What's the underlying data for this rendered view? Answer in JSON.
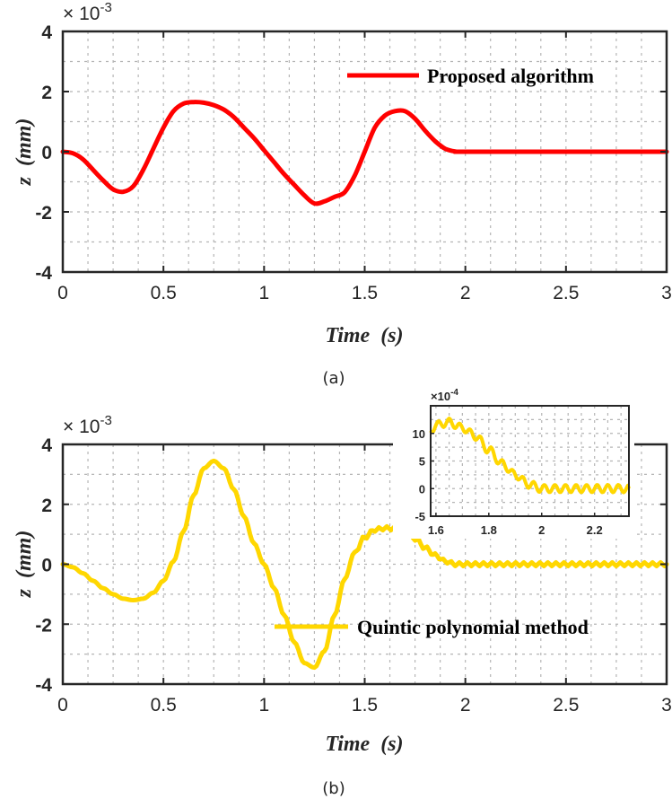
{
  "chart_data": [
    {
      "type": "line",
      "panel": "(a)",
      "xlabel": "Time  (s)",
      "ylabel": "z  (mm)",
      "exponent": "× 10",
      "exponent_power": "-3",
      "xlim": [
        0,
        3
      ],
      "ylim": [
        -4,
        4
      ],
      "xticks": [
        "0",
        "0.5",
        "1",
        "1.5",
        "2",
        "2.5",
        "3"
      ],
      "yticks": [
        "4",
        "2",
        "0",
        "-2",
        "-4"
      ],
      "grid": true,
      "legend_position": "top-right",
      "color": "#ff0000",
      "series": [
        {
          "name": "Proposed algorithm",
          "x": [
            0,
            0.05,
            0.1,
            0.15,
            0.2,
            0.25,
            0.3,
            0.35,
            0.4,
            0.45,
            0.5,
            0.55,
            0.6,
            0.65,
            0.7,
            0.75,
            0.8,
            0.85,
            0.9,
            0.95,
            1.0,
            1.05,
            1.1,
            1.15,
            1.2,
            1.25,
            1.3,
            1.35,
            1.4,
            1.45,
            1.5,
            1.55,
            1.6,
            1.65,
            1.7,
            1.75,
            1.8,
            1.85,
            1.9,
            1.95,
            2.0,
            2.5,
            3.0
          ],
          "y": [
            0.0,
            -0.05,
            -0.25,
            -0.6,
            -0.95,
            -1.25,
            -1.33,
            -1.15,
            -0.6,
            0.1,
            0.8,
            1.35,
            1.6,
            1.65,
            1.63,
            1.55,
            1.4,
            1.15,
            0.8,
            0.45,
            0.05,
            -0.35,
            -0.75,
            -1.1,
            -1.45,
            -1.72,
            -1.65,
            -1.5,
            -1.35,
            -0.8,
            0.0,
            0.8,
            1.2,
            1.35,
            1.35,
            1.1,
            0.7,
            0.35,
            0.1,
            0.01,
            0.0,
            0.0,
            0.0
          ]
        }
      ]
    },
    {
      "type": "line",
      "panel": "(b)",
      "xlabel": "Time  (s)",
      "ylabel": "z  (mm)",
      "exponent": "× 10",
      "exponent_power": "-3",
      "xlim": [
        0,
        3
      ],
      "ylim": [
        -4,
        4
      ],
      "xticks": [
        "0",
        "0.5",
        "1",
        "1.5",
        "2",
        "2.5",
        "3"
      ],
      "yticks": [
        "4",
        "2",
        "0",
        "-2",
        "-4"
      ],
      "grid": true,
      "legend_position": "bottom-right",
      "color": "#ffd700",
      "series": [
        {
          "name": "Quintic polynomial method",
          "x": [
            0,
            0.05,
            0.1,
            0.15,
            0.2,
            0.25,
            0.3,
            0.35,
            0.4,
            0.45,
            0.5,
            0.55,
            0.6,
            0.65,
            0.7,
            0.75,
            0.8,
            0.85,
            0.9,
            0.95,
            1.0,
            1.05,
            1.1,
            1.15,
            1.2,
            1.25,
            1.3,
            1.35,
            1.4,
            1.45,
            1.5,
            1.55,
            1.6,
            1.65,
            1.7,
            1.75,
            1.8,
            1.85,
            1.9,
            1.95,
            2.0,
            2.5,
            3.0
          ],
          "y": [
            0.0,
            -0.1,
            -0.3,
            -0.55,
            -0.8,
            -1.0,
            -1.15,
            -1.2,
            -1.15,
            -0.95,
            -0.55,
            0.1,
            1.1,
            2.3,
            3.2,
            3.45,
            3.2,
            2.5,
            1.6,
            0.7,
            0.0,
            -0.8,
            -1.7,
            -2.6,
            -3.3,
            -3.45,
            -2.9,
            -1.7,
            -0.5,
            0.4,
            0.9,
            1.15,
            1.2,
            1.2,
            1.1,
            0.85,
            0.55,
            0.3,
            0.1,
            0.0,
            0.0,
            0.0,
            0.0
          ]
        }
      ],
      "inset": {
        "exponent": "×10",
        "exponent_power": "-4",
        "xlim": [
          1.58,
          2.33
        ],
        "ylim": [
          -5,
          15
        ],
        "xticks": [
          "1.6",
          "1.8",
          "2",
          "2.2"
        ],
        "yticks": [
          "10",
          "5",
          "0",
          "-5"
        ],
        "x": [
          1.58,
          1.6,
          1.65,
          1.7,
          1.75,
          1.8,
          1.85,
          1.9,
          1.95,
          2.0,
          2.1,
          2.2,
          2.33
        ],
        "y": [
          10.5,
          11.5,
          12.0,
          11.0,
          9.5,
          7.0,
          4.5,
          2.5,
          0.8,
          0.0,
          0.0,
          0.0,
          0.0
        ]
      }
    }
  ],
  "captions": [
    "(a)",
    "(b)"
  ]
}
